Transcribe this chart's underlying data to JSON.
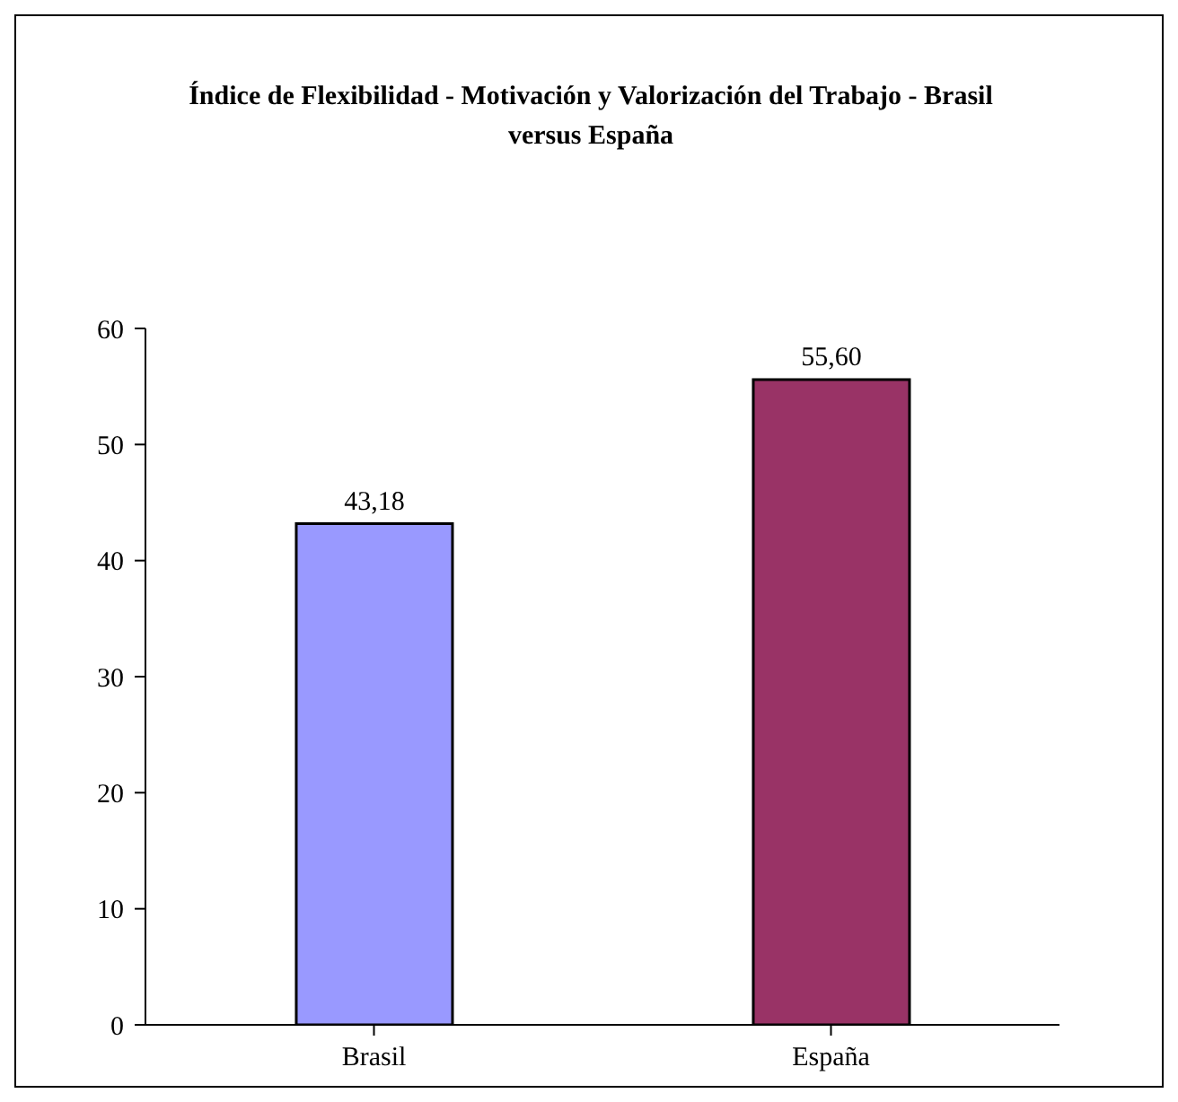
{
  "chart_data": {
    "type": "bar",
    "title": "Índice de Flexibilidad - Motivación y Valorización del Trabajo - Brasil versus España",
    "categories": [
      "Brasil",
      "España"
    ],
    "values": [
      43.18,
      55.6
    ],
    "colors": [
      "#9999ff",
      "#993366"
    ],
    "value_labels": [
      "43,18",
      "55,60"
    ],
    "ylim": [
      0,
      60
    ],
    "yticks": [
      0,
      10,
      20,
      30,
      40,
      50,
      60
    ],
    "grid": false,
    "legend": false
  }
}
